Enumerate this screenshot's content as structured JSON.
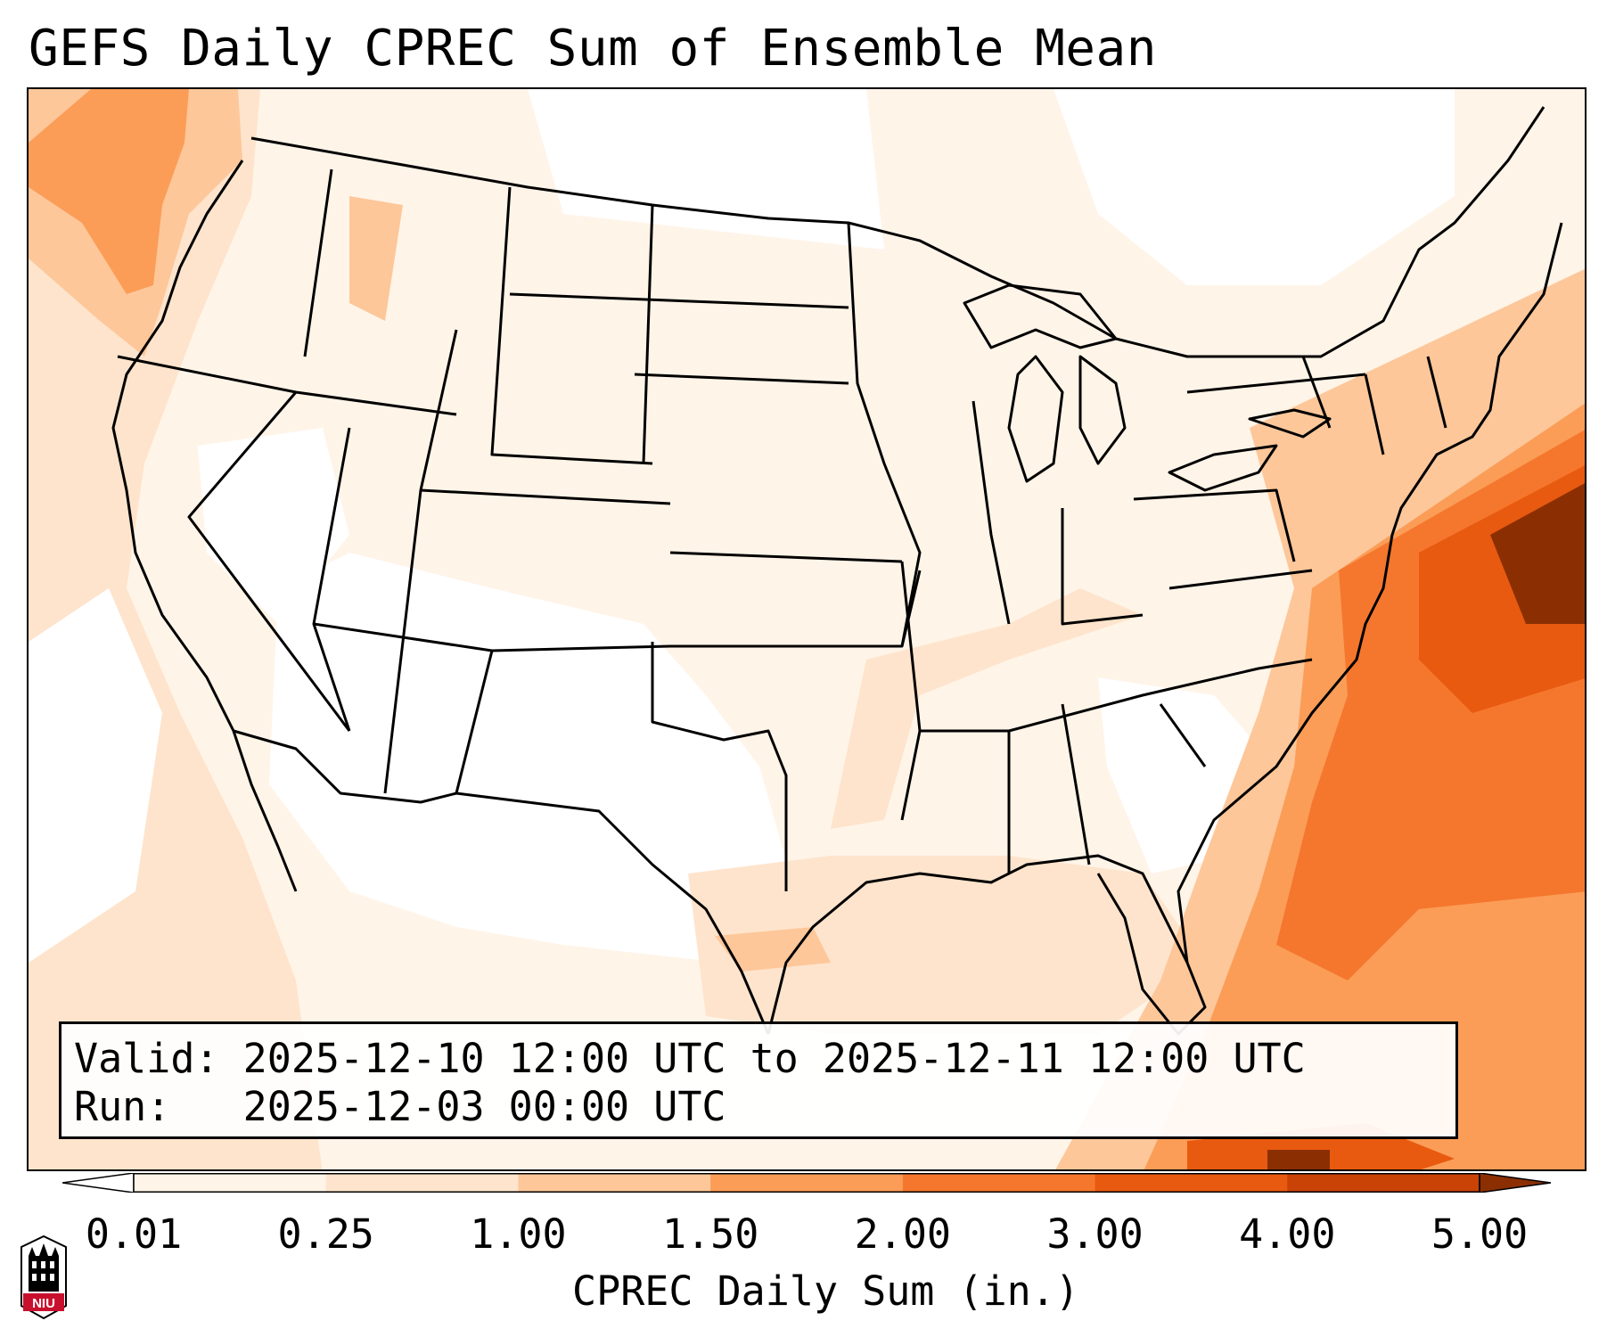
{
  "title": "GEFS Daily CPREC Sum of Ensemble Mean",
  "info": {
    "valid_label": "Valid:",
    "valid_value": "2025-12-10 12:00 UTC to 2025-12-11 12:00 UTC",
    "run_label": "Run:",
    "run_value": "2025-12-03 00:00 UTC"
  },
  "colorbar": {
    "label": "CPREC Daily Sum (in.)",
    "ticks": [
      "0.01",
      "0.25",
      "1.00",
      "1.50",
      "2.00",
      "3.00",
      "4.00",
      "5.00"
    ],
    "colors": [
      "#fff4e8",
      "#fee4cc",
      "#fdc79a",
      "#fb9d57",
      "#f5772d",
      "#e85a10",
      "#c94206"
    ],
    "extend_low_color": "#ffffff",
    "extend_high_color": "#8b2f03"
  },
  "logo": {
    "text": "NIU",
    "color": "#c8102e"
  }
}
